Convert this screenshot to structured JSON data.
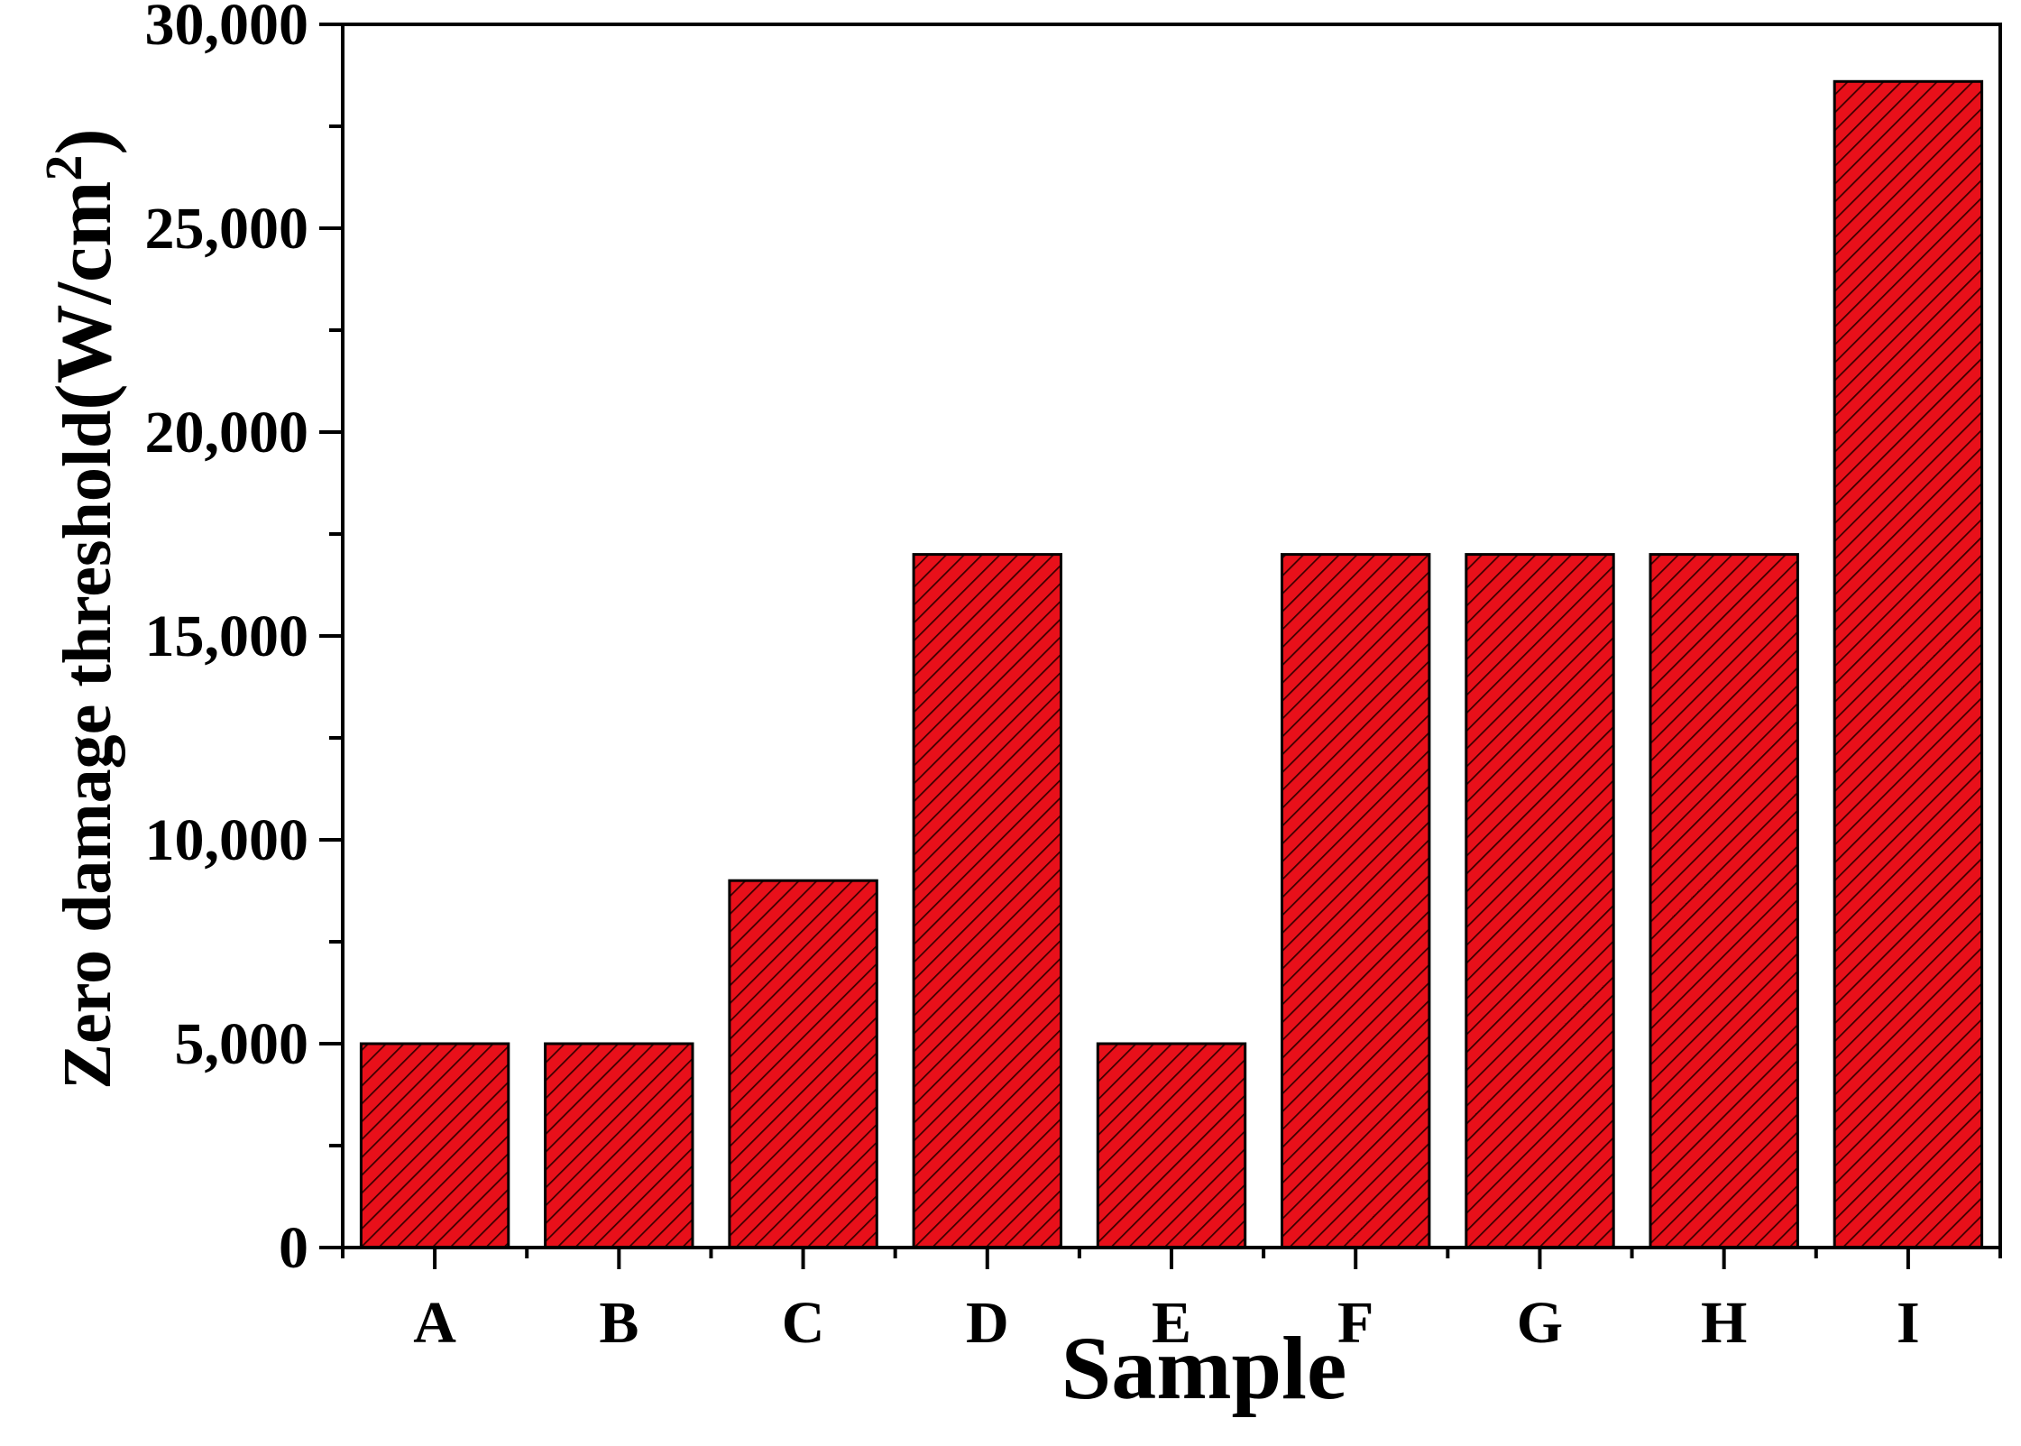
{
  "chart_data": {
    "type": "bar",
    "categories": [
      "A",
      "B",
      "C",
      "D",
      "E",
      "F",
      "G",
      "H",
      "I"
    ],
    "values": [
      5000,
      5000,
      9000,
      17000,
      5000,
      17000,
      17000,
      17000,
      28600
    ],
    "xlabel": "Sample",
    "ylabel_main": "Zero damage threshold",
    "ylabel_unit_open": "(W/cm",
    "ylabel_unit_sup": "2",
    "ylabel_unit_close": ")",
    "ylim": [
      0,
      30000
    ],
    "yticks": [
      0,
      5000,
      10000,
      15000,
      20000,
      25000,
      30000
    ],
    "ytick_labels": [
      "0",
      "5,000",
      "10,000",
      "15,000",
      "20,000",
      "25,000",
      "30,000"
    ],
    "minor_ytick_step": 2500,
    "grid": false,
    "bar_color": "#e8101a",
    "bar_pattern": "diagonal-hatch",
    "hatch_color": "#3a0000",
    "edge_color": "#000000"
  }
}
